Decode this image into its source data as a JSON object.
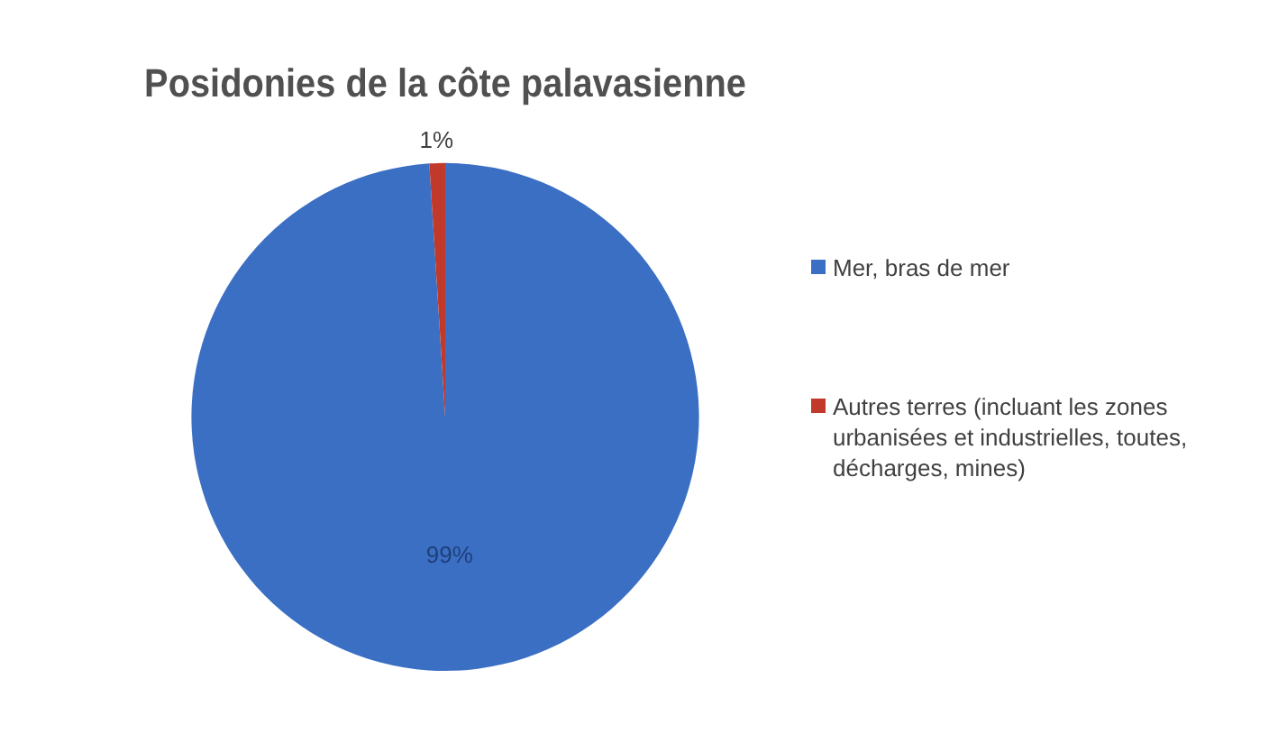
{
  "chart_data": {
    "type": "pie",
    "title": "Posidonies de la côte palavasienne",
    "categories": [
      "Mer, bras de mer",
      "Autres terres (incluant les zones urbanisées et industrielles, toutes, décharges, mines)"
    ],
    "values": [
      99,
      1
    ],
    "colors": [
      "#3b6fc4",
      "#c0392b"
    ],
    "value_labels": [
      "99%",
      "1%"
    ],
    "legend": "right"
  }
}
